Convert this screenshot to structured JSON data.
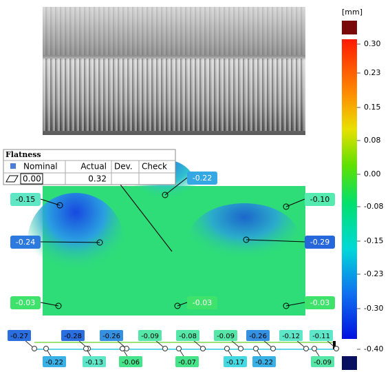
{
  "colorbar": {
    "unit": "[mm]",
    "ticks": [
      "0.30",
      "0.23",
      "0.15",
      "0.08",
      "0.00",
      "-0.08",
      "-0.15",
      "-0.23",
      "-0.30",
      "-0.40"
    ]
  },
  "table": {
    "title": "Flatness",
    "headers": [
      "Nominal",
      "Actual",
      "Dev.",
      "Check"
    ],
    "nominal": "0.00",
    "actual": "0.32"
  },
  "callouts": [
    {
      "label": "-0.15",
      "color": "#5fe6c4"
    },
    {
      "label": "-0.22",
      "color": "#35a8e4"
    },
    {
      "label": "-0.10",
      "color": "#55eab0"
    },
    {
      "label": "-0.24",
      "color": "#2c7ade"
    },
    {
      "label": "-0.29",
      "color": "#2668dc"
    },
    {
      "label": "-0.03",
      "color": "#3fe36c"
    },
    {
      "label": "-0.03",
      "color": "#3fe36c"
    },
    {
      "label": "-0.03",
      "color": "#3fe36c"
    }
  ],
  "profile": {
    "top": [
      {
        "label": "-0.27",
        "color": "#2a6ee0"
      },
      {
        "label": "-0.28",
        "color": "#2a6ee0"
      },
      {
        "label": "-0.26",
        "color": "#3690e2"
      },
      {
        "label": "-0.09",
        "color": "#55e6a8"
      },
      {
        "label": "-0.08",
        "color": "#55e6a8"
      },
      {
        "label": "-0.09",
        "color": "#55e6a8"
      },
      {
        "label": "-0.26",
        "color": "#3690e2"
      },
      {
        "label": "-0.12",
        "color": "#5ee6c8"
      },
      {
        "label": "-0.11",
        "color": "#5ee6c8"
      }
    ],
    "bottom": [
      {
        "label": "-0.22",
        "color": "#39b0e6"
      },
      {
        "label": "-0.13",
        "color": "#5ee6c8"
      },
      {
        "label": "-0.06",
        "color": "#45e48a"
      },
      {
        "label": "-0.07",
        "color": "#45e48a"
      },
      {
        "label": "-0.17",
        "color": "#44d8e0"
      },
      {
        "label": "-0.22",
        "color": "#39b0e6"
      },
      {
        "label": "-0.09",
        "color": "#55e6a8"
      }
    ]
  }
}
